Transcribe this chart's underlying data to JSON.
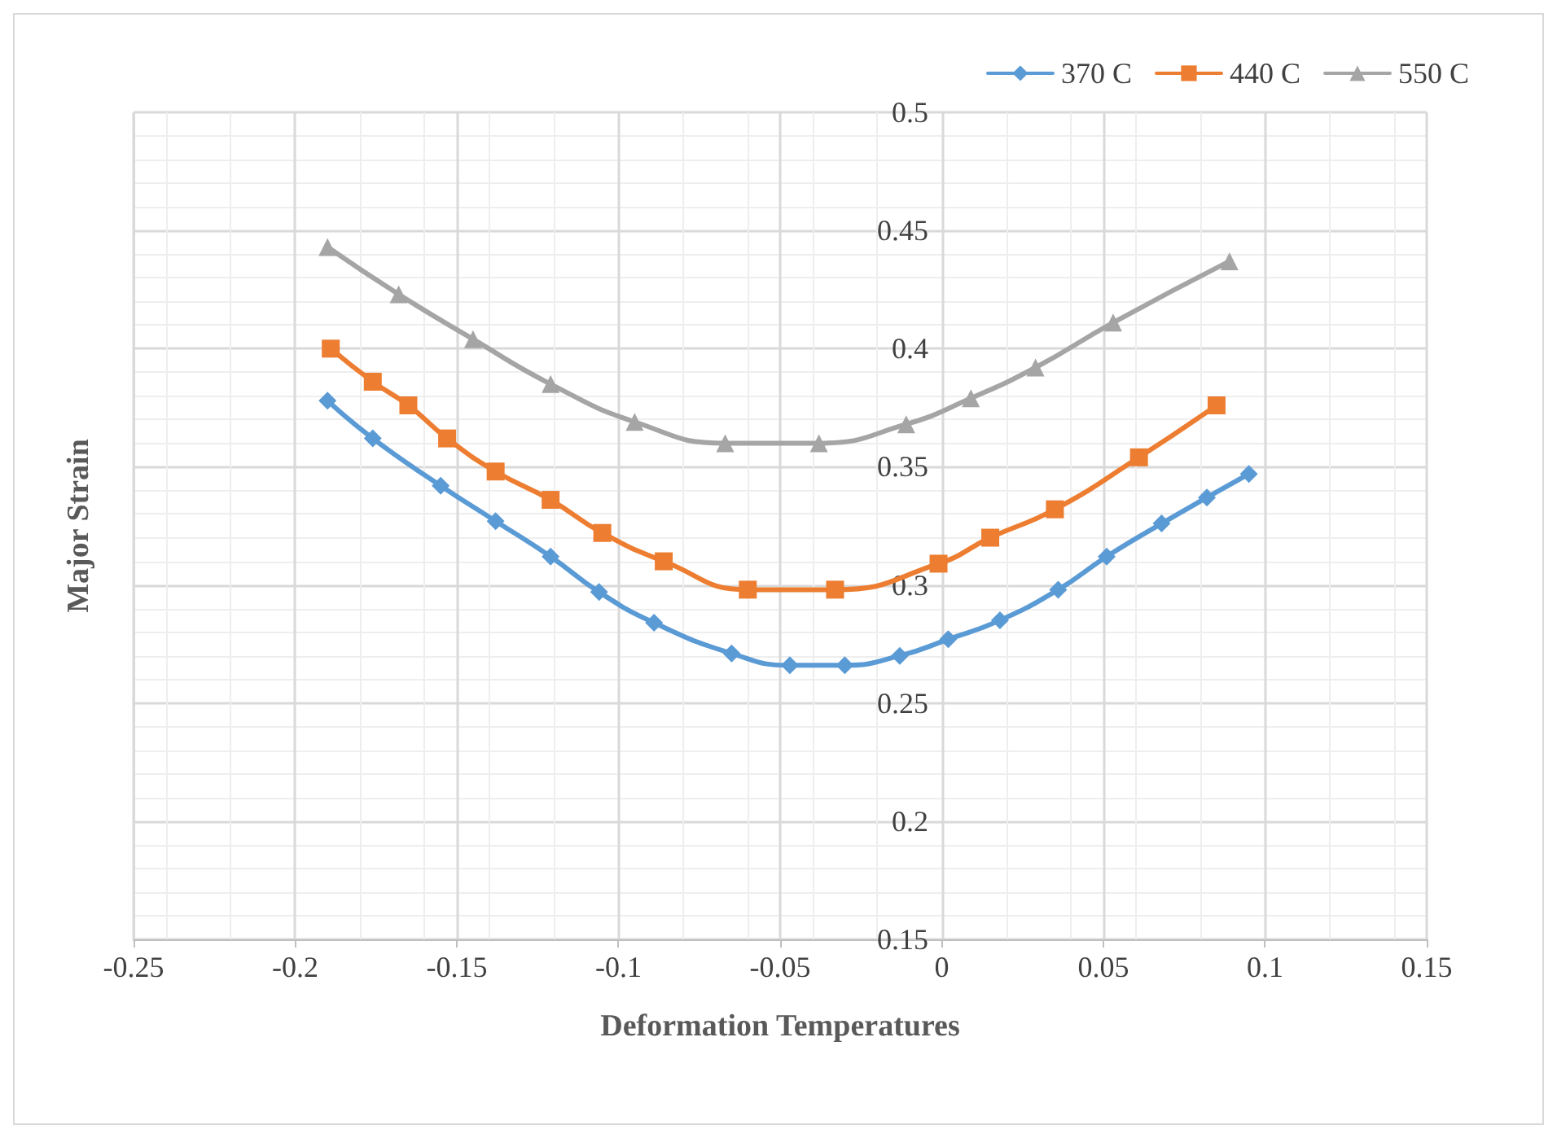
{
  "chart_data": {
    "type": "line",
    "xlabel": "Deformation Temperatures",
    "ylabel": "Major Strain",
    "xlim": [
      -0.25,
      0.15
    ],
    "xticks": [
      -0.25,
      -0.2,
      -0.15,
      -0.1,
      -0.05,
      0,
      0.05,
      0.1,
      0.15
    ],
    "ylim": [
      0.15,
      0.5
    ],
    "yticks": [
      0.15,
      0.2,
      0.25,
      0.3,
      0.35,
      0.4,
      0.45,
      0.5
    ],
    "grid": true,
    "legend": "top right",
    "line_style": "solid",
    "series": [
      {
        "name": "370 C",
        "color": "#5b9bd5",
        "marker": "diamond",
        "x": [
          -0.19,
          -0.176,
          -0.155,
          -0.138,
          -0.121,
          -0.106,
          -0.089,
          -0.065,
          -0.047,
          -0.03,
          -0.013,
          0.002,
          0.018,
          0.036,
          0.051,
          0.068,
          0.082,
          0.095
        ],
        "values": [
          0.378,
          0.362,
          0.342,
          0.327,
          0.312,
          0.297,
          0.284,
          0.271,
          0.266,
          0.266,
          0.27,
          0.277,
          0.285,
          0.298,
          0.312,
          0.326,
          0.337,
          0.347
        ]
      },
      {
        "name": "440 C",
        "color": "#ed7d31",
        "marker": "square",
        "x": [
          -0.189,
          -0.176,
          -0.165,
          -0.153,
          -0.138,
          -0.121,
          -0.105,
          -0.086,
          -0.06,
          -0.033,
          -0.001,
          0.015,
          0.035,
          0.061,
          0.085
        ],
        "values": [
          0.4,
          0.386,
          0.376,
          0.362,
          0.348,
          0.336,
          0.322,
          0.31,
          0.298,
          0.298,
          0.309,
          0.32,
          0.332,
          0.354,
          0.376
        ]
      },
      {
        "name": "550 C",
        "color": "#a5a5a5",
        "marker": "triangle",
        "x": [
          -0.19,
          -0.168,
          -0.145,
          -0.121,
          -0.095,
          -0.067,
          -0.038,
          -0.011,
          0.009,
          0.029,
          0.053,
          0.089
        ],
        "values": [
          0.443,
          0.423,
          0.404,
          0.385,
          0.369,
          0.36,
          0.36,
          0.368,
          0.379,
          0.392,
          0.411,
          0.437
        ]
      }
    ]
  }
}
